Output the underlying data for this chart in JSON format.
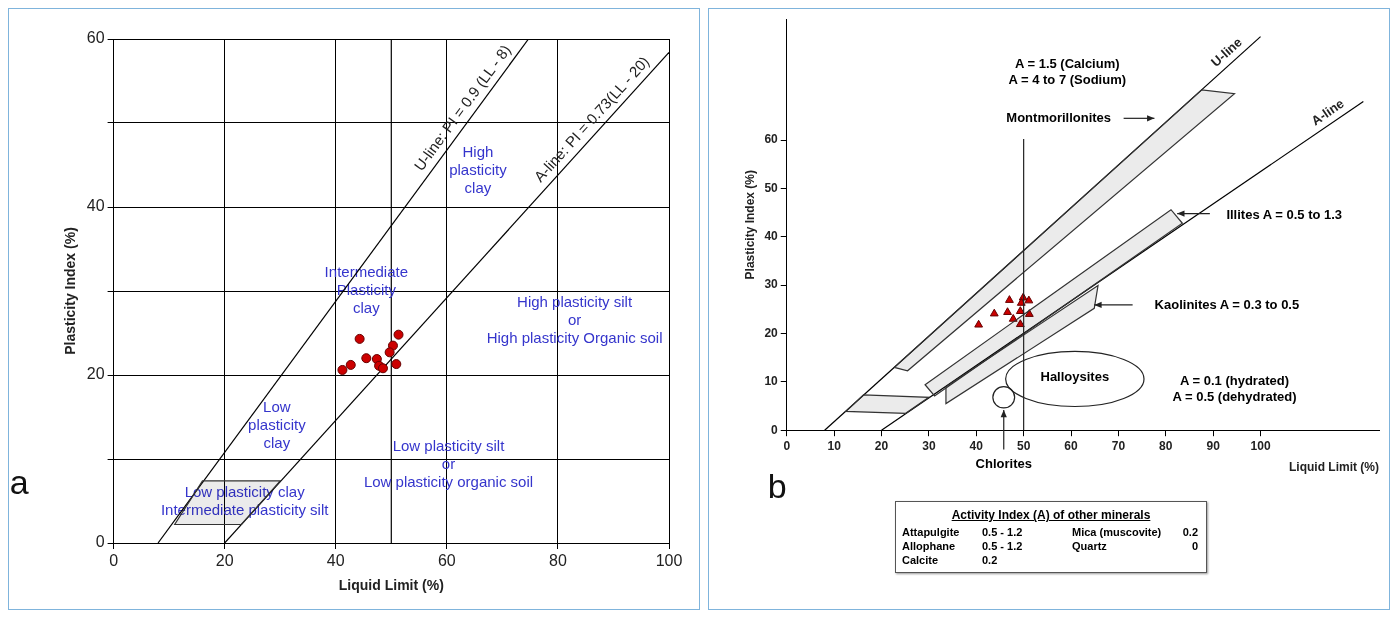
{
  "chart_data": [
    {
      "type": "scatter",
      "xlabel": "Liquid Limit (%)",
      "ylabel": "Plasticity Index (%)",
      "xlim": [
        0,
        100
      ],
      "ylim": [
        0,
        60
      ],
      "xticks": [
        0,
        20,
        40,
        60,
        80,
        100
      ],
      "yticks": [
        0,
        {
          "value": 10,
          "label": null
        },
        20,
        {
          "value": 30,
          "label": null
        },
        40,
        {
          "value": 50,
          "label": null
        },
        60
      ],
      "grid": true,
      "marker": "circle",
      "series": [
        {
          "color": "#cc0000",
          "x": [
            44.3,
            51.3,
            50.3,
            49.7,
            45.5,
            47.4,
            47.8,
            48.5,
            50.9,
            42.7,
            41.2
          ],
          "values": [
            24.3,
            24.8,
            23.5,
            22.7,
            22,
            21.9,
            21.1,
            20.8,
            21.3,
            21.2,
            20.6
          ]
        },
        {
          "type": "line",
          "name": "U-line: PI = 0.9 (LL - 8)",
          "color": "#000000",
          "marker": "none",
          "x": [
            8,
            74.7
          ],
          "values": [
            0,
            60
          ]
        },
        {
          "type": "line",
          "name": "A-line: PI = 0.73(LL - 20)",
          "color": "#000000",
          "marker": "none",
          "x": [
            20,
            100
          ],
          "values": [
            0,
            58.4
          ]
        }
      ],
      "ref_lines": [
        {
          "axis": "x",
          "value": 50,
          "color": "#000000"
        }
      ],
      "annotations": [
        "High\nplasticity\nclay",
        "Intermediate\nPlasticity\nclay",
        "High plasticity silt\nor\nHigh plasticity Organic soil",
        "Low\nplasticity\nclay",
        "Low plasticity silt\nor\nLow plasticity organic soil",
        "Low plasticity clay\nIntermediate plasticity silt",
        "a"
      ]
    },
    {
      "type": "scatter",
      "xlabel": "Liquid Limit (%)",
      "ylabel": "Plasticity Index (%)",
      "xlim": [
        0,
        125
      ],
      "ylim": [
        0,
        85
      ],
      "xticks": [
        0,
        10,
        20,
        30,
        40,
        50,
        60,
        70,
        80,
        90,
        100
      ],
      "yticks": [
        0,
        10,
        20,
        30,
        40,
        50,
        60
      ],
      "marker": "triangle",
      "series": [
        {
          "color": "#cc0000",
          "x": [
            40.5,
            43.8,
            47,
            46.6,
            49.9,
            51.1,
            49.5,
            49.3,
            47.8,
            49.3,
            51.2
          ],
          "values": [
            21.8,
            24.1,
            26.9,
            24.4,
            27.4,
            26.8,
            26.3,
            24.6,
            23,
            21.9,
            24
          ]
        },
        {
          "type": "line",
          "name": "U-line",
          "color": "#000000",
          "marker": "none",
          "x": [
            8,
            100
          ],
          "values": [
            0,
            81.4
          ]
        },
        {
          "type": "line",
          "name": "A-line",
          "color": "#000000",
          "marker": "none",
          "x": [
            20,
            121.7
          ],
          "values": [
            0,
            68
          ]
        }
      ],
      "annotations": [
        "A = 1.5 (Calcium)\nA = 4 to 7 (Sodium)",
        "Montmorillonites",
        "Illites A = 0.5 to 1.3",
        "Kaolinites A = 0.3 to 0.5",
        "Halloysites",
        "A = 0.1 (hydrated)\nA = 0.5 (dehydrated)",
        "Chlorites",
        "b"
      ]
    },
    {
      "type": "other",
      "title": "Activity Index (A) of other minerals",
      "annotations": [
        "Attapulgite",
        "0.5 - 1.2",
        "Mica  (muscovite)",
        "0.2",
        "Allophane",
        "0.5 - 1.2",
        "Quartz",
        "0",
        "Calcite",
        "0.2"
      ]
    }
  ]
}
